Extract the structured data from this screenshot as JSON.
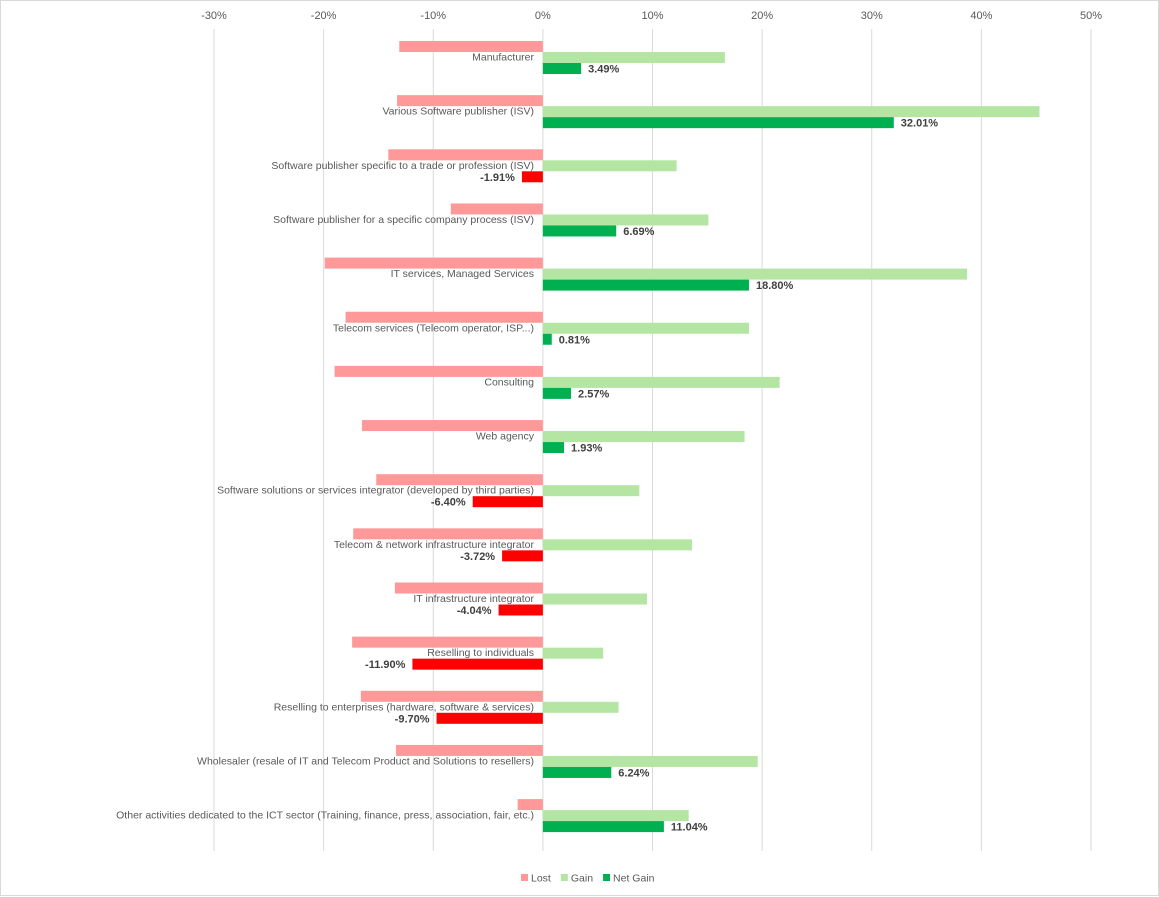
{
  "chart_data": {
    "type": "bar",
    "orientation": "horizontal",
    "title": "",
    "xlabel": "",
    "ylabel": "",
    "xlim": [
      -30,
      50
    ],
    "xticks": [
      -30,
      -20,
      -10,
      0,
      10,
      20,
      30,
      40,
      50
    ],
    "tick_labels": [
      "-30%",
      "-20%",
      "-10%",
      "0%",
      "10%",
      "20%",
      "30%",
      "40%",
      "50%"
    ],
    "axis_position": "top",
    "grid": true,
    "legend": "bottom",
    "categories": [
      "Manufacturer",
      "Various Software publisher (ISV)",
      "Software publisher specific to a trade or profession (ISV)",
      "Software publisher for a specific company process (ISV)",
      "IT services, Managed Services",
      "Telecom services (Telecom operator, ISP...)",
      "Consulting",
      "Web agency",
      "Software solutions or services integrator (developed by third parties)",
      "Telecom & network infrastructure integrator",
      "IT infrastructure integrator",
      "Reselling to individuals",
      "Reselling to enterprises (hardware, software & services)",
      "Wholesaler (resale of IT and Telecom Product and Solutions to resellers)",
      "Other activities dedicated to the ICT sector (Training, finance, press, association, fair, etc.)"
    ],
    "series": [
      {
        "name": "Lost",
        "color": "#FF9999",
        "values": [
          -13.1,
          -13.3,
          -14.1,
          -8.4,
          -19.9,
          -18.0,
          -19.0,
          -16.5,
          -15.2,
          -17.3,
          -13.5,
          -17.4,
          -16.6,
          -13.4,
          -2.3
        ]
      },
      {
        "name": "Gain",
        "color": "#B4E5A2",
        "values": [
          16.6,
          45.3,
          12.2,
          15.1,
          38.7,
          18.8,
          21.6,
          18.4,
          8.8,
          13.6,
          9.5,
          5.5,
          6.9,
          19.6,
          13.3
        ]
      },
      {
        "name": "Net Gain",
        "color": "#00B050",
        "negative_color": "#FF0000",
        "values": [
          3.49,
          32.01,
          -1.91,
          6.69,
          18.8,
          0.81,
          2.57,
          1.93,
          -6.4,
          -3.72,
          -4.04,
          -11.9,
          -9.7,
          6.24,
          11.04
        ],
        "labels": [
          "3.49%",
          "32.01%",
          "-1.91%",
          "6.69%",
          "18.80%",
          "0.81%",
          "2.57%",
          "1.93%",
          "-6.40%",
          "-3.72%",
          "-4.04%",
          "-11.90%",
          "-9.70%",
          "6.24%",
          "11.04%"
        ]
      }
    ]
  }
}
